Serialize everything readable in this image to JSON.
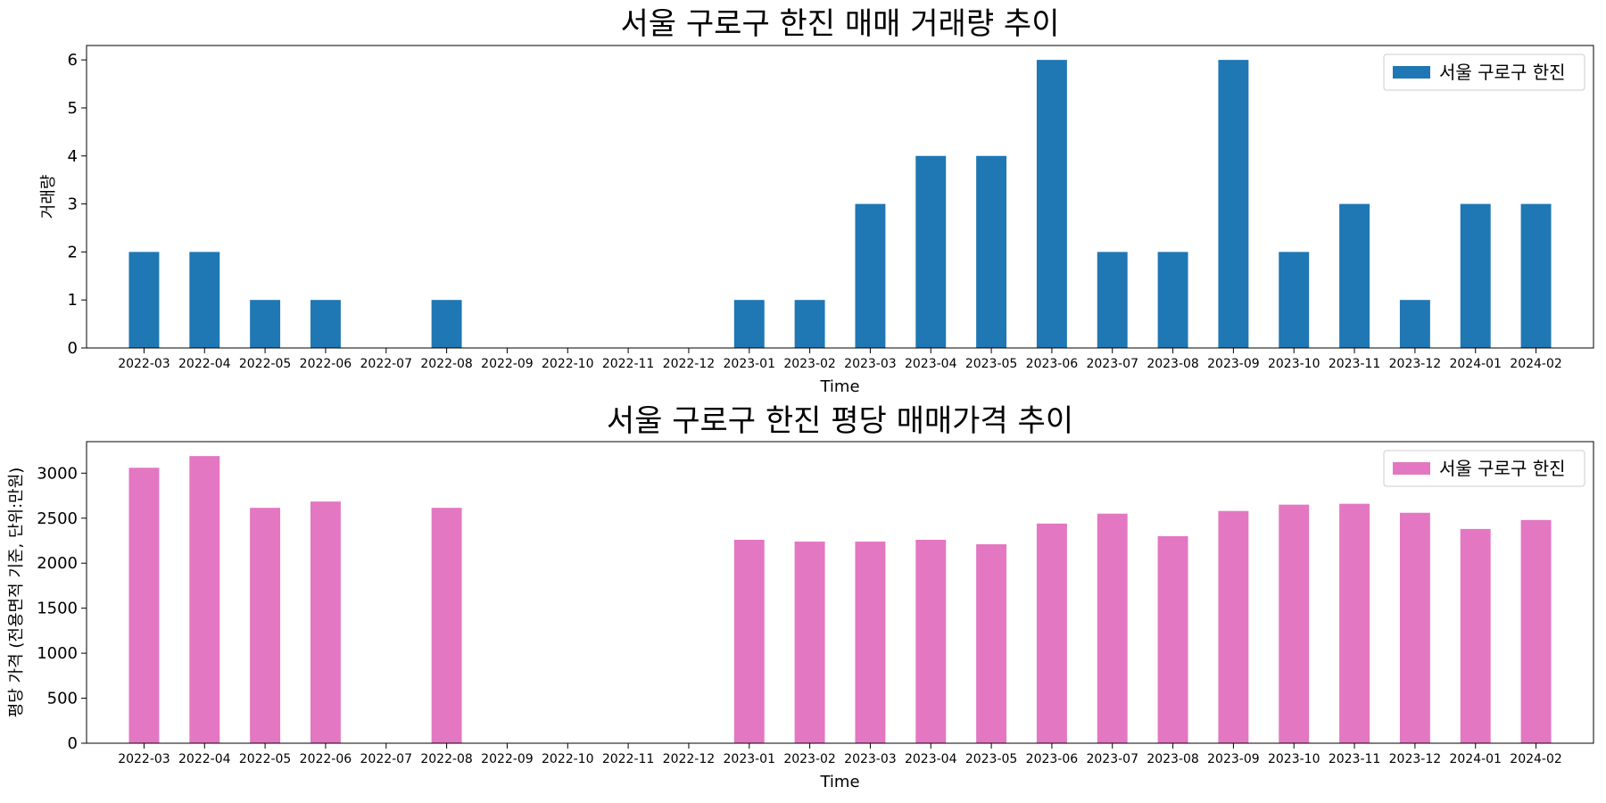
{
  "chart_data": [
    {
      "type": "bar",
      "title": "서울 구로구 한진 매매 거래량 추이",
      "xlabel": "Time",
      "ylabel": "거래량",
      "categories": [
        "2022-03",
        "2022-04",
        "2022-05",
        "2022-06",
        "2022-07",
        "2022-08",
        "2022-09",
        "2022-10",
        "2022-11",
        "2022-12",
        "2023-01",
        "2023-02",
        "2023-03",
        "2023-04",
        "2023-05",
        "2023-06",
        "2023-07",
        "2023-08",
        "2023-09",
        "2023-10",
        "2023-11",
        "2023-12",
        "2024-01",
        "2024-02"
      ],
      "series": [
        {
          "name": "서울 구로구 한진",
          "color": "#1f77b4",
          "values": [
            2,
            2,
            1,
            1,
            0,
            1,
            0,
            0,
            0,
            0,
            1,
            1,
            3,
            4,
            4,
            6,
            2,
            2,
            6,
            2,
            3,
            1,
            3,
            3
          ]
        }
      ],
      "ylim": [
        0,
        6.3
      ],
      "yticks": [
        0,
        1,
        2,
        3,
        4,
        5,
        6
      ],
      "legend": "top-right",
      "grid": false
    },
    {
      "type": "bar",
      "title": "서울 구로구 한진 평당 매매가격 추이",
      "xlabel": "Time",
      "ylabel": "평당 가격 (전용면적 기준, 단위:만원)",
      "categories": [
        "2022-03",
        "2022-04",
        "2022-05",
        "2022-06",
        "2022-07",
        "2022-08",
        "2022-09",
        "2022-10",
        "2022-11",
        "2022-12",
        "2023-01",
        "2023-02",
        "2023-03",
        "2023-04",
        "2023-05",
        "2023-06",
        "2023-07",
        "2023-08",
        "2023-09",
        "2023-10",
        "2023-11",
        "2023-12",
        "2024-01",
        "2024-02"
      ],
      "series": [
        {
          "name": "서울 구로구 한진",
          "color": "#e377c2",
          "values": [
            3060,
            3190,
            2615,
            2685,
            0,
            2615,
            0,
            0,
            0,
            0,
            2260,
            2240,
            2240,
            2260,
            2210,
            2440,
            2550,
            2300,
            2580,
            2650,
            2660,
            2560,
            2380,
            2480
          ]
        }
      ],
      "ylim": [
        0,
        3350
      ],
      "yticks": [
        0,
        500,
        1000,
        1500,
        2000,
        2500,
        3000
      ],
      "legend": "top-right",
      "grid": false
    }
  ]
}
